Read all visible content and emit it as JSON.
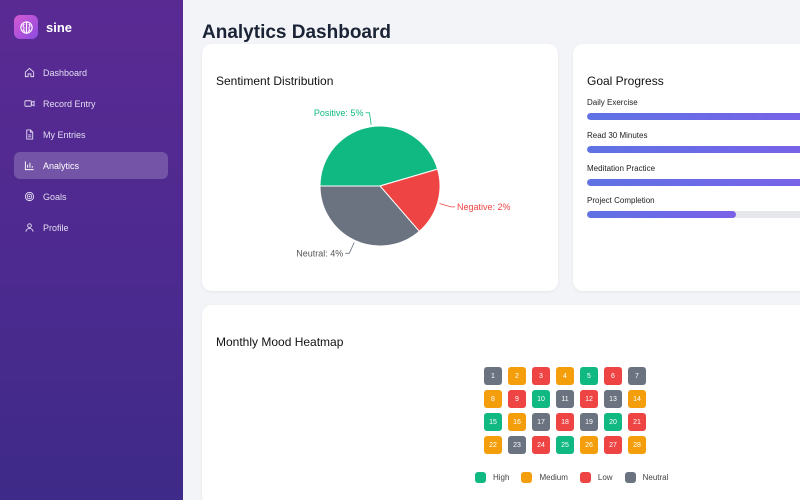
{
  "brand": {
    "name": "sine"
  },
  "sidebar": {
    "items": [
      {
        "label": "Dashboard",
        "icon": "home-icon",
        "active": false
      },
      {
        "label": "Record Entry",
        "icon": "video-icon",
        "active": false
      },
      {
        "label": "My Entries",
        "icon": "document-icon",
        "active": false
      },
      {
        "label": "Analytics",
        "icon": "bar-chart-icon",
        "active": true
      },
      {
        "label": "Goals",
        "icon": "target-icon",
        "active": false
      },
      {
        "label": "Profile",
        "icon": "user-icon",
        "active": false
      }
    ]
  },
  "page": {
    "title": "Analytics Dashboard"
  },
  "sentiment": {
    "title": "Sentiment Distribution",
    "labels": {
      "positive": "Positive: 5%",
      "negative": "Negative: 2%",
      "neutral": "Neutral: 4%"
    },
    "colors": {
      "positive": "#10b981",
      "negative": "#ef4444",
      "neutral": "#6b7280"
    }
  },
  "chart_data": {
    "type": "pie",
    "title": "Sentiment Distribution",
    "slices": [
      {
        "label": "Positive",
        "value": 5,
        "color": "#10b981"
      },
      {
        "label": "Negative",
        "value": 2,
        "color": "#ef4444"
      },
      {
        "label": "Neutral",
        "value": 4,
        "color": "#6b7280"
      }
    ]
  },
  "goals": {
    "title": "Goal Progress",
    "items": [
      {
        "label": "Daily Exercise",
        "progress": 1.0
      },
      {
        "label": "Read 30 Minutes",
        "progress": 1.0
      },
      {
        "label": "Meditation Practice",
        "progress": 1.0
      },
      {
        "label": "Project Completion",
        "progress": 0.62
      }
    ]
  },
  "heatmap": {
    "title": "Monthly Mood Heatmap",
    "colors": {
      "high": "#10b981",
      "medium": "#f59e0b",
      "low": "#ef4444",
      "neutral": "#6b7280"
    },
    "days": [
      {
        "day": "1",
        "mood": "neutral"
      },
      {
        "day": "2",
        "mood": "medium"
      },
      {
        "day": "3",
        "mood": "low"
      },
      {
        "day": "4",
        "mood": "medium"
      },
      {
        "day": "5",
        "mood": "high"
      },
      {
        "day": "6",
        "mood": "low"
      },
      {
        "day": "7",
        "mood": "neutral"
      },
      {
        "day": "8",
        "mood": "medium"
      },
      {
        "day": "9",
        "mood": "low"
      },
      {
        "day": "10",
        "mood": "high"
      },
      {
        "day": "11",
        "mood": "neutral"
      },
      {
        "day": "12",
        "mood": "low"
      },
      {
        "day": "13",
        "mood": "neutral"
      },
      {
        "day": "14",
        "mood": "medium"
      },
      {
        "day": "15",
        "mood": "high"
      },
      {
        "day": "16",
        "mood": "medium"
      },
      {
        "day": "17",
        "mood": "neutral"
      },
      {
        "day": "18",
        "mood": "low"
      },
      {
        "day": "19",
        "mood": "neutral"
      },
      {
        "day": "20",
        "mood": "high"
      },
      {
        "day": "21",
        "mood": "low"
      },
      {
        "day": "22",
        "mood": "medium"
      },
      {
        "day": "23",
        "mood": "neutral"
      },
      {
        "day": "24",
        "mood": "low"
      },
      {
        "day": "25",
        "mood": "high"
      },
      {
        "day": "26",
        "mood": "medium"
      },
      {
        "day": "27",
        "mood": "low"
      },
      {
        "day": "28",
        "mood": "medium"
      }
    ],
    "legend": [
      {
        "label": "High",
        "mood": "high"
      },
      {
        "label": "Medium",
        "mood": "medium"
      },
      {
        "label": "Low",
        "mood": "low"
      },
      {
        "label": "Neutral",
        "mood": "neutral"
      }
    ]
  }
}
